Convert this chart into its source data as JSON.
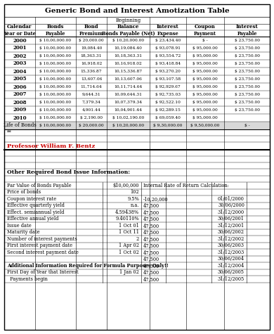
{
  "title": "Generic Bond and Interest Amotization Table",
  "table_rows": [
    [
      "2000",
      "$ 10,00,000.00",
      "$ 20,000.00",
      "$ 10,20,000.00",
      "$ 23,434.40",
      "$ -",
      "$ 23,750.00"
    ],
    [
      "2001",
      "$ 10,00,000.00",
      "19,084.40",
      "10,19,084.40",
      "$ 93,078.91",
      "$ 95,000.00",
      "$ 23,750.00"
    ],
    [
      "2002",
      "$ 10,00,000.00",
      "18,363.31",
      "10,18,363.31",
      "$ 93,554.72",
      "$ 95,000.00",
      "$ 23,750.00"
    ],
    [
      "2003",
      "$ 10,00,000.00",
      "16,918.02",
      "10,16,918.02",
      "$ 93,418.84",
      "$ 95,000.00",
      "$ 23,750.00"
    ],
    [
      "2004",
      "$ 10,00,000.00",
      "15,336.87",
      "10,15,336.87",
      "$ 93,270.20",
      "$ 95,000.00",
      "$ 23,750.00"
    ],
    [
      "2005",
      "$ 10,00,000.00",
      "13,607.06",
      "10,13,607.06",
      "$ 93,107.58",
      "$ 95,000.00",
      "$ 23,750.00"
    ],
    [
      "2006",
      "$ 10,00,000.00",
      "11,714.64",
      "10,11,714.64",
      "$ 92,929.67",
      "$ 95,000.00",
      "$ 23,750.00"
    ],
    [
      "2007",
      "$ 10,00,000.00",
      "9,644.31",
      "10,09,644.31",
      "$ 92,735.03",
      "$ 95,000.00",
      "$ 23,750.00"
    ],
    [
      "2008",
      "$ 10,00,000.00",
      "7,379.34",
      "10,07,379.34",
      "$ 92,522.10",
      "$ 95,000.00",
      "$ 23,750.00"
    ],
    [
      "2009",
      "$ 10,00,000.00",
      "4,901.44",
      "10,04,901.44",
      "$ 92,289.15",
      "$ 95,000.00",
      "$ 23,750.00"
    ],
    [
      "2010",
      "$ 10,00,000.00",
      "$ 2,190.00",
      "$ 10,02,190.00",
      "$ 69,059.40",
      "$ 95,000.00",
      ""
    ],
    [
      "Life of Bonds",
      "$ 10,00,000.00",
      "$ 20,000.00",
      "$ 10,20,000.00",
      "$ 9,30,000.00",
      "$ 9,50,000.00",
      "$ -"
    ]
  ],
  "professor": "Professor William F. Bentz",
  "section2_title": "Other Required Bond Issue Information:",
  "info_rows": [
    [
      "Par Value of Bonds Payable",
      "$10,00,000",
      "Internal Rate of Return Calculation:",
      "",
      ""
    ],
    [
      "Price of bonds",
      "102",
      "",
      "",
      ""
    ],
    [
      "Coupon interest rate",
      "9.5%",
      "-10,20,000",
      "01/01/2000",
      ""
    ],
    [
      "Effective quarterly yield",
      "n.a.",
      "47,500",
      "30/06/2000",
      ""
    ],
    [
      "Effect. semiannual yield",
      "4.59438%",
      "47,500",
      "31/12/2000",
      ""
    ],
    [
      "Effective annual yield",
      "9.40110%",
      "47,500",
      "30/06/2001",
      ""
    ],
    [
      "Issue date",
      "1 Oct 01",
      "47,500",
      "31/12/2001",
      ""
    ],
    [
      "Maturity date",
      "1 Oct 11",
      "47,500",
      "30/06/2002",
      ""
    ],
    [
      "Number of interest payments",
      "2",
      "47,500",
      "31/12/2002",
      ""
    ],
    [
      "First interest payment date",
      "1 Apr 02",
      "47,500",
      "30/06/2003",
      ""
    ],
    [
      "Second interest payment date",
      "1 Oct 02",
      "47,500",
      "31/12/2003",
      ""
    ],
    [
      "",
      "",
      "47,500",
      "30/06/2004",
      ""
    ],
    [
      "Additional Information Required for Formula Purposes Only!!",
      "",
      "47,500",
      "31/12/2004",
      ""
    ],
    [
      "First Day of Year that Interest",
      "1 Jan 02",
      "47,500",
      "30/06/2005",
      ""
    ],
    [
      "  Payments begin",
      "",
      "47,500",
      "31/12/2005",
      ""
    ]
  ],
  "bg_color": "#ffffff",
  "professor_color": "#cc0000"
}
